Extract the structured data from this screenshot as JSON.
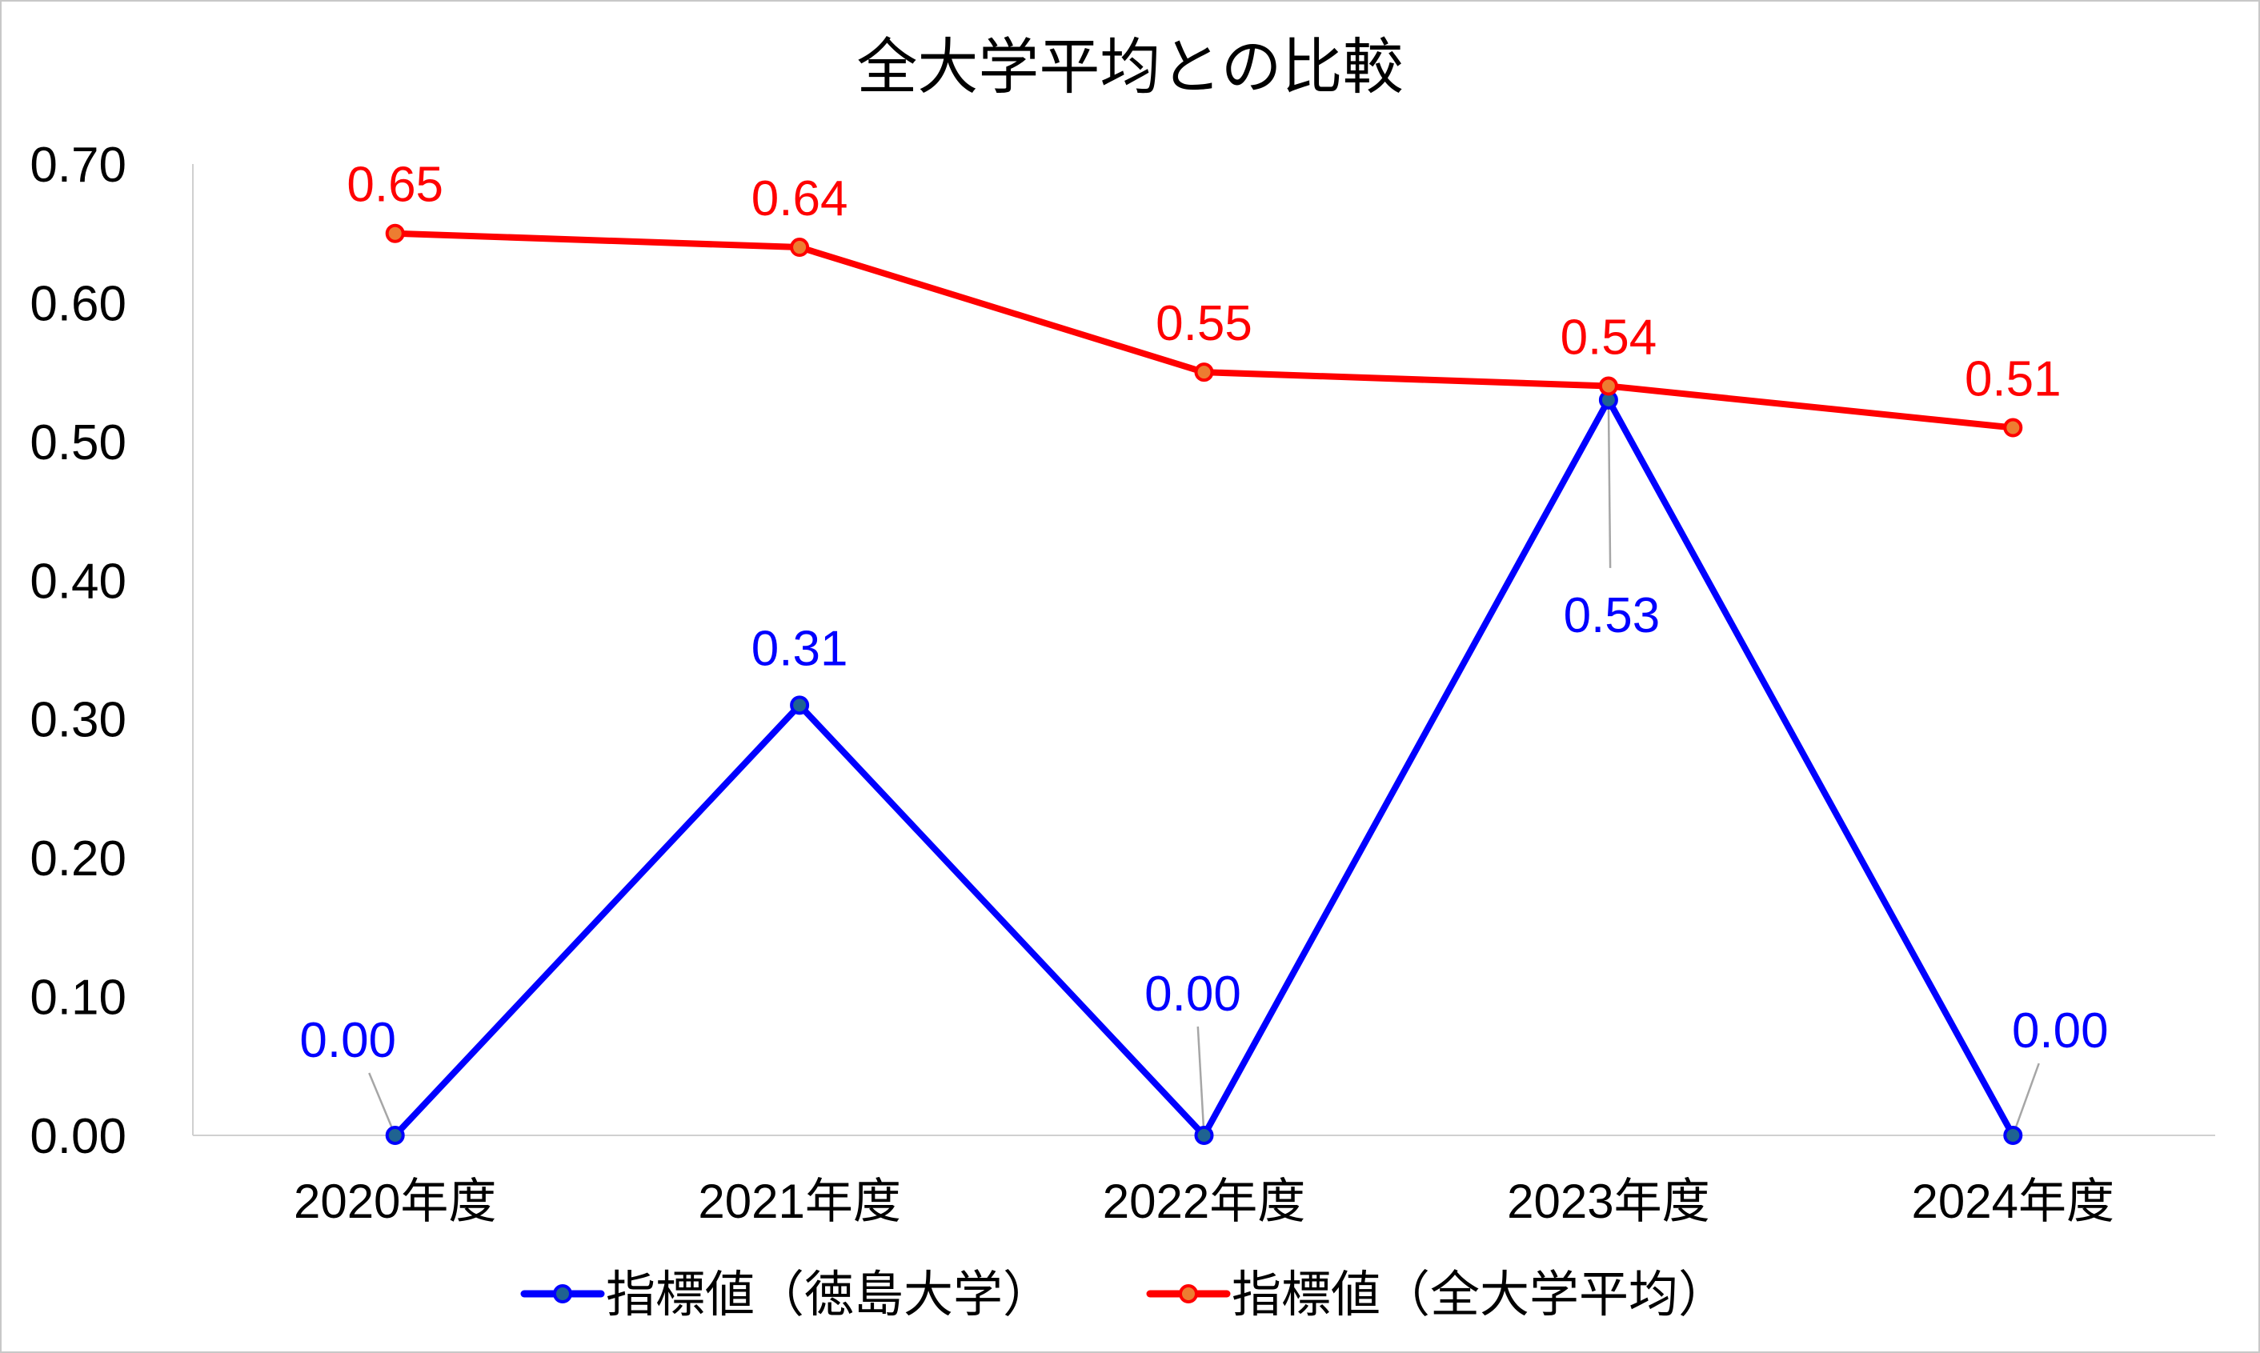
{
  "chart_data": {
    "type": "line",
    "title": "全大学平均との比較",
    "categories": [
      "2020年度",
      "2021年度",
      "2022年度",
      "2023年度",
      "2024年度"
    ],
    "series": [
      {
        "name": "指標値（徳島大学）",
        "values": [
          0.0,
          0.31,
          0.0,
          0.53,
          0.0
        ],
        "labels": [
          "0.00",
          "0.31",
          "0.00",
          "0.53",
          "0.00"
        ],
        "color": "#0000ff",
        "marker_fill": "#1f6391"
      },
      {
        "name": "指標値（全大学平均）",
        "values": [
          0.65,
          0.64,
          0.55,
          0.54,
          0.51
        ],
        "labels": [
          "0.65",
          "0.64",
          "0.55",
          "0.54",
          "0.51"
        ],
        "color": "#ff0000",
        "marker_fill": "#ed7d31"
      }
    ],
    "yticks": [
      "0.00",
      "0.10",
      "0.20",
      "0.30",
      "0.40",
      "0.50",
      "0.60",
      "0.70"
    ],
    "ylim": [
      0,
      0.7
    ],
    "grid": false,
    "legend": "bottom",
    "xlabel": "",
    "ylabel": ""
  }
}
